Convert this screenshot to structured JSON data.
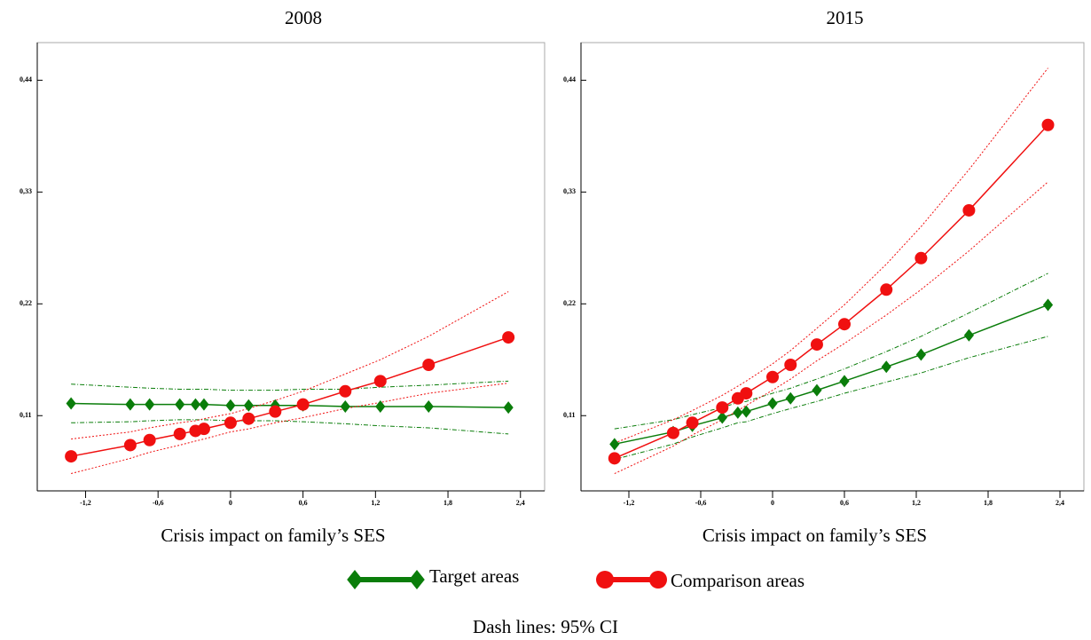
{
  "chart_data": [
    {
      "type": "line",
      "title": "2008",
      "xlabel": "Crisis impact on family’s SES",
      "x": [
        -1.32,
        -0.83,
        -0.67,
        -0.42,
        -0.29,
        -0.22,
        0,
        0.15,
        0.37,
        0.6,
        0.95,
        1.24,
        1.64,
        2.3
      ],
      "xlim": [
        -1.6,
        2.6
      ],
      "xticks": [
        {
          "value": -1.2,
          "label": "-1,2"
        },
        {
          "value": -0.6,
          "label": "-0,6"
        },
        0,
        {
          "value": 0.6,
          "label": "0,6"
        },
        {
          "value": 1.2,
          "label": "1,2"
        },
        {
          "value": 1.8,
          "label": "1,8"
        },
        {
          "value": 2.4,
          "label": "2,4"
        }
      ],
      "ylim": [
        0.036,
        0.477
      ],
      "yticks": [
        {
          "value": 0.11,
          "label": "0,11"
        },
        {
          "value": 0.22,
          "label": "0,22"
        },
        {
          "value": 0.33,
          "label": "0,33"
        },
        {
          "value": 0.44,
          "label": "0,44"
        }
      ],
      "series": [
        {
          "name": "Target areas",
          "color": "#0a7d0a",
          "marker": "diamond",
          "values": [
            0.122,
            0.121,
            0.121,
            0.121,
            0.121,
            0.121,
            0.12,
            0.12,
            0.12,
            0.12,
            0.119,
            0.119,
            0.119,
            0.118
          ],
          "ci_lower": [
            0.103,
            0.104,
            0.105,
            0.106,
            0.106,
            0.106,
            0.105,
            0.105,
            0.105,
            0.104,
            0.102,
            0.1,
            0.098,
            0.092
          ],
          "ci_upper": [
            0.141,
            0.138,
            0.137,
            0.136,
            0.136,
            0.136,
            0.135,
            0.135,
            0.135,
            0.136,
            0.136,
            0.138,
            0.14,
            0.144
          ]
        },
        {
          "name": "Comparison areas",
          "color": "#f01010",
          "marker": "circle",
          "values": [
            0.07,
            0.081,
            0.086,
            0.092,
            0.095,
            0.097,
            0.103,
            0.107,
            0.114,
            0.121,
            0.134,
            0.144,
            0.16,
            0.187
          ],
          "ci_lower": [
            0.053,
            0.068,
            0.074,
            0.081,
            0.085,
            0.087,
            0.094,
            0.097,
            0.103,
            0.108,
            0.117,
            0.123,
            0.132,
            0.142
          ],
          "ci_upper": [
            0.087,
            0.094,
            0.098,
            0.103,
            0.105,
            0.107,
            0.112,
            0.117,
            0.125,
            0.134,
            0.151,
            0.165,
            0.188,
            0.232
          ]
        }
      ]
    },
    {
      "type": "line",
      "title": "2015",
      "xlabel": "Crisis impact on family’s SES",
      "x": [
        -1.32,
        -0.83,
        -0.67,
        -0.42,
        -0.29,
        -0.22,
        0,
        0.15,
        0.37,
        0.6,
        0.95,
        1.24,
        1.64,
        2.3
      ],
      "xlim": [
        -1.6,
        2.6
      ],
      "xticks": [
        {
          "value": -1.2,
          "label": "-1,2"
        },
        {
          "value": -0.6,
          "label": "-0,6"
        },
        0,
        {
          "value": 0.6,
          "label": "0,6"
        },
        {
          "value": 1.2,
          "label": "1,2"
        },
        {
          "value": 1.8,
          "label": "1,8"
        },
        {
          "value": 2.4,
          "label": "2,4"
        }
      ],
      "ylim": [
        0.036,
        0.477
      ],
      "yticks": [
        {
          "value": 0.11,
          "label": "0,11"
        },
        {
          "value": 0.22,
          "label": "0,22"
        },
        {
          "value": 0.33,
          "label": "0,33"
        },
        {
          "value": 0.44,
          "label": "0,44"
        }
      ],
      "series": [
        {
          "name": "Target areas",
          "color": "#0a7d0a",
          "marker": "diamond",
          "values": [
            0.082,
            0.094,
            0.1,
            0.108,
            0.113,
            0.114,
            0.122,
            0.127,
            0.135,
            0.144,
            0.158,
            0.17,
            0.189,
            0.219
          ],
          "ci_lower": [
            0.067,
            0.082,
            0.089,
            0.098,
            0.103,
            0.104,
            0.112,
            0.117,
            0.124,
            0.132,
            0.143,
            0.152,
            0.167,
            0.188
          ],
          "ci_upper": [
            0.097,
            0.106,
            0.111,
            0.118,
            0.123,
            0.124,
            0.132,
            0.137,
            0.146,
            0.156,
            0.173,
            0.188,
            0.211,
            0.25
          ]
        },
        {
          "name": "Comparison areas",
          "color": "#f01010",
          "marker": "circle",
          "values": [
            0.068,
            0.093,
            0.103,
            0.118,
            0.127,
            0.132,
            0.148,
            0.16,
            0.18,
            0.2,
            0.234,
            0.265,
            0.312,
            0.396
          ],
          "ci_lower": [
            0.053,
            0.08,
            0.091,
            0.106,
            0.115,
            0.12,
            0.135,
            0.146,
            0.164,
            0.181,
            0.209,
            0.234,
            0.272,
            0.34
          ],
          "ci_upper": [
            0.083,
            0.106,
            0.115,
            0.13,
            0.139,
            0.144,
            0.161,
            0.174,
            0.196,
            0.219,
            0.259,
            0.296,
            0.352,
            0.452
          ]
        }
      ]
    }
  ],
  "note": "Dash lines: 95% CI"
}
